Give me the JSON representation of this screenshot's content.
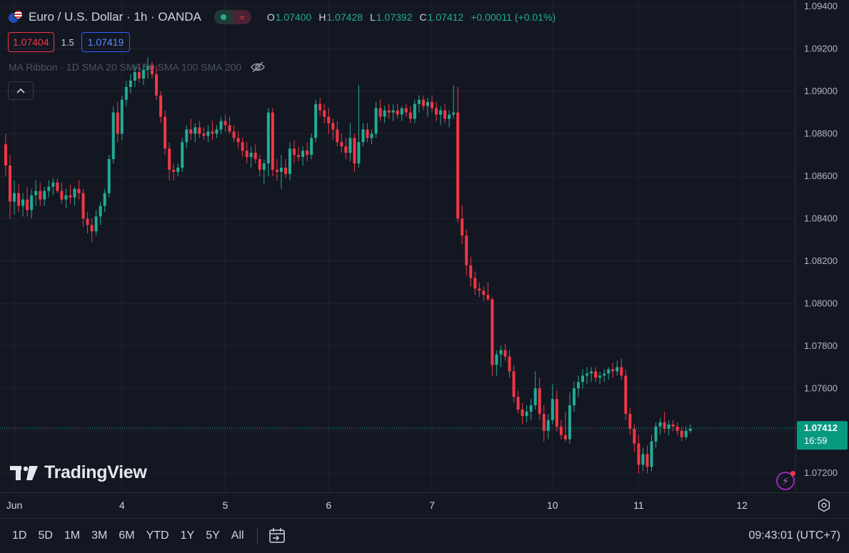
{
  "header": {
    "symbol_title": "Euro / U.S. Dollar · 1h · OANDA",
    "market_status_icon": "market-open-dot",
    "replay_icon": "wave-icon",
    "ohlc": {
      "o_label": "O",
      "o_value": "1.07400",
      "h_label": "H",
      "h_value": "1.07428",
      "l_label": "L",
      "l_value": "1.07392",
      "c_label": "C",
      "c_value": "1.07412",
      "change": "+0.00011 (+0.01%)"
    }
  },
  "trade": {
    "bid": "1.07404",
    "spread": "1.5",
    "ask": "1.07419"
  },
  "indicator": {
    "label": "MA Ribbon · 1D SMA 20 SMA 50 SMA 100 SMA 200",
    "visibility_icon": "eye-off-icon"
  },
  "brand": {
    "name": "TradingView",
    "logo_icon": "tv-logo-icon"
  },
  "price_tag": {
    "price": "1.07412",
    "countdown": "16:59"
  },
  "ranges": [
    "1D",
    "5D",
    "1M",
    "3M",
    "6M",
    "YTD",
    "1Y",
    "5Y",
    "All"
  ],
  "clock": "09:43:01 (UTC+7)",
  "colors": {
    "up": "#22ab94",
    "down": "#f23645",
    "background": "#131722",
    "grid": "#1f2430",
    "text": "#d1d4dc"
  },
  "chart_data": {
    "type": "candlestick",
    "title": "Euro / U.S. Dollar · 1h · OANDA",
    "xlabel": "",
    "ylabel": "",
    "ylim": [
      1.0711,
      1.0943
    ],
    "y_ticks": [
      "1.07200",
      "1.07400",
      "1.07600",
      "1.07800",
      "1.08000",
      "1.08200",
      "1.08400",
      "1.08600",
      "1.08800",
      "1.09000",
      "1.09200",
      "1.09400"
    ],
    "x_ticks": [
      {
        "label": "Jun",
        "bar": 2
      },
      {
        "label": "4",
        "bar": 27
      },
      {
        "label": "5",
        "bar": 51
      },
      {
        "label": "6",
        "bar": 75
      },
      {
        "label": "7",
        "bar": 99
      },
      {
        "label": "10",
        "bar": 127
      },
      {
        "label": "11",
        "bar": 147
      },
      {
        "label": "12",
        "bar": 171
      }
    ],
    "grid": true,
    "last_price": 1.07412,
    "ohlc": [
      [
        1.0875,
        1.088,
        1.086,
        1.0865
      ],
      [
        1.0865,
        1.087,
        1.084,
        1.0848
      ],
      [
        1.0848,
        1.0858,
        1.0842,
        1.0852
      ],
      [
        1.0852,
        1.0856,
        1.0843,
        1.0846
      ],
      [
        1.0846,
        1.0852,
        1.0841,
        1.0849
      ],
      [
        1.0849,
        1.0855,
        1.0841,
        1.0844
      ],
      [
        1.0844,
        1.0854,
        1.084,
        1.0851
      ],
      [
        1.0851,
        1.0858,
        1.0846,
        1.0853
      ],
      [
        1.0853,
        1.0857,
        1.0846,
        1.0849
      ],
      [
        1.0849,
        1.0855,
        1.0846,
        1.0853
      ],
      [
        1.0853,
        1.0858,
        1.085,
        1.0855
      ],
      [
        1.0855,
        1.0859,
        1.0851,
        1.0857
      ],
      [
        1.0857,
        1.0859,
        1.0852,
        1.0853
      ],
      [
        1.0853,
        1.0857,
        1.0847,
        1.0849
      ],
      [
        1.0849,
        1.0854,
        1.0845,
        1.0851
      ],
      [
        1.0851,
        1.0856,
        1.0847,
        1.085
      ],
      [
        1.085,
        1.0855,
        1.0846,
        1.0854
      ],
      [
        1.0854,
        1.0858,
        1.0849,
        1.0852
      ],
      [
        1.0852,
        1.0854,
        1.0836,
        1.084
      ],
      [
        1.084,
        1.0843,
        1.0833,
        1.0837
      ],
      [
        1.0837,
        1.084,
        1.0829,
        1.0834
      ],
      [
        1.0834,
        1.0844,
        1.0832,
        1.0841
      ],
      [
        1.0841,
        1.0848,
        1.0837,
        1.0846
      ],
      [
        1.0846,
        1.0854,
        1.0843,
        1.0852
      ],
      [
        1.0852,
        1.087,
        1.085,
        1.0868
      ],
      [
        1.0868,
        1.0893,
        1.0866,
        1.089
      ],
      [
        1.089,
        1.0895,
        1.0876,
        1.088
      ],
      [
        1.088,
        1.0898,
        1.0877,
        1.0896
      ],
      [
        1.0896,
        1.0905,
        1.0893,
        1.0902
      ],
      [
        1.0902,
        1.0908,
        1.0899,
        1.0905
      ],
      [
        1.0905,
        1.0912,
        1.0902,
        1.0909
      ],
      [
        1.0909,
        1.0913,
        1.0904,
        1.0906
      ],
      [
        1.0906,
        1.0913,
        1.0903,
        1.091
      ],
      [
        1.091,
        1.0916,
        1.0906,
        1.0912
      ],
      [
        1.0912,
        1.0914,
        1.0906,
        1.0908
      ],
      [
        1.0908,
        1.0912,
        1.0896,
        1.0898
      ],
      [
        1.0898,
        1.09,
        1.0885,
        1.0888
      ],
      [
        1.0888,
        1.0891,
        1.087,
        1.0873
      ],
      [
        1.0873,
        1.0876,
        1.0858,
        1.0863
      ],
      [
        1.0863,
        1.0866,
        1.0858,
        1.0862
      ],
      [
        1.0862,
        1.0866,
        1.086,
        1.0864
      ],
      [
        1.0864,
        1.0878,
        1.0862,
        1.0876
      ],
      [
        1.0876,
        1.0884,
        1.0873,
        1.0882
      ],
      [
        1.0882,
        1.0887,
        1.0877,
        1.088
      ],
      [
        1.088,
        1.0885,
        1.0876,
        1.0883
      ],
      [
        1.0883,
        1.0886,
        1.0878,
        1.088
      ],
      [
        1.088,
        1.0883,
        1.0877,
        1.0879
      ],
      [
        1.0879,
        1.0884,
        1.0876,
        1.0881
      ],
      [
        1.0881,
        1.0886,
        1.0877,
        1.088
      ],
      [
        1.088,
        1.0884,
        1.0878,
        1.0882
      ],
      [
        1.0882,
        1.0888,
        1.088,
        1.0886
      ],
      [
        1.0886,
        1.0889,
        1.0881,
        1.0884
      ],
      [
        1.0884,
        1.0888,
        1.088,
        1.0881
      ],
      [
        1.0881,
        1.0884,
        1.0876,
        1.0878
      ],
      [
        1.0878,
        1.0881,
        1.0873,
        1.0876
      ],
      [
        1.0876,
        1.0878,
        1.0869,
        1.0872
      ],
      [
        1.0872,
        1.0876,
        1.0866,
        1.0869
      ],
      [
        1.0869,
        1.0874,
        1.0864,
        1.0871
      ],
      [
        1.0871,
        1.0875,
        1.0866,
        1.0868
      ],
      [
        1.0868,
        1.087,
        1.086,
        1.0863
      ],
      [
        1.0863,
        1.0868,
        1.0856,
        1.0866
      ],
      [
        1.0866,
        1.0892,
        1.086,
        1.089
      ],
      [
        1.089,
        1.0892,
        1.086,
        1.0863
      ],
      [
        1.0863,
        1.0868,
        1.0858,
        1.0862
      ],
      [
        1.0862,
        1.087,
        1.0854,
        1.0864
      ],
      [
        1.0864,
        1.0868,
        1.0859,
        1.0861
      ],
      [
        1.0861,
        1.0876,
        1.0858,
        1.0873
      ],
      [
        1.0873,
        1.0877,
        1.0866,
        1.087
      ],
      [
        1.087,
        1.0874,
        1.0867,
        1.0869
      ],
      [
        1.0869,
        1.0874,
        1.0865,
        1.0872
      ],
      [
        1.0872,
        1.0876,
        1.0867,
        1.087
      ],
      [
        1.087,
        1.088,
        1.0868,
        1.0878
      ],
      [
        1.0878,
        1.0896,
        1.0876,
        1.0894
      ],
      [
        1.0894,
        1.0897,
        1.0888,
        1.0891
      ],
      [
        1.0891,
        1.0894,
        1.0885,
        1.0888
      ],
      [
        1.0888,
        1.0892,
        1.088,
        1.0885
      ],
      [
        1.0885,
        1.0887,
        1.0877,
        1.0882
      ],
      [
        1.0882,
        1.0886,
        1.0874,
        1.0876
      ],
      [
        1.0876,
        1.088,
        1.0871,
        1.0874
      ],
      [
        1.0874,
        1.0878,
        1.0868,
        1.0871
      ],
      [
        1.0871,
        1.0885,
        1.0867,
        1.0878
      ],
      [
        1.0878,
        1.088,
        1.0862,
        1.0866
      ],
      [
        1.0866,
        1.0903,
        1.0864,
        1.0876
      ],
      [
        1.0876,
        1.0885,
        1.0874,
        1.0882
      ],
      [
        1.0882,
        1.0885,
        1.0876,
        1.0878
      ],
      [
        1.0878,
        1.0882,
        1.0875,
        1.088
      ],
      [
        1.088,
        1.0895,
        1.0878,
        1.0892
      ],
      [
        1.0892,
        1.0896,
        1.0886,
        1.0888
      ],
      [
        1.0888,
        1.0893,
        1.0885,
        1.0891
      ],
      [
        1.0891,
        1.0894,
        1.0887,
        1.089
      ],
      [
        1.089,
        1.0894,
        1.0886,
        1.0891
      ],
      [
        1.0891,
        1.0894,
        1.0887,
        1.0889
      ],
      [
        1.0889,
        1.0893,
        1.0886,
        1.0892
      ],
      [
        1.0892,
        1.0894,
        1.0888,
        1.089
      ],
      [
        1.089,
        1.0893,
        1.0885,
        1.0887
      ],
      [
        1.0887,
        1.0896,
        1.0885,
        1.0894
      ],
      [
        1.0894,
        1.0898,
        1.089,
        1.0896
      ],
      [
        1.0896,
        1.0898,
        1.0891,
        1.0893
      ],
      [
        1.0893,
        1.0897,
        1.0888,
        1.0895
      ],
      [
        1.0895,
        1.0898,
        1.089,
        1.0892
      ],
      [
        1.0892,
        1.0895,
        1.0886,
        1.0889
      ],
      [
        1.0889,
        1.0893,
        1.0884,
        1.0891
      ],
      [
        1.0891,
        1.0894,
        1.0885,
        1.0887
      ],
      [
        1.0887,
        1.0891,
        1.0883,
        1.0889
      ],
      [
        1.0889,
        1.0903,
        1.0887,
        1.089
      ],
      [
        1.089,
        1.0902,
        1.0838,
        1.084
      ],
      [
        1.084,
        1.0846,
        1.0828,
        1.0832
      ],
      [
        1.0832,
        1.0835,
        1.0813,
        1.0818
      ],
      [
        1.0818,
        1.0822,
        1.0808,
        1.0812
      ],
      [
        1.0812,
        1.0815,
        1.0804,
        1.0807
      ],
      [
        1.0807,
        1.081,
        1.0803,
        1.0806
      ],
      [
        1.0806,
        1.0808,
        1.0801,
        1.0804
      ],
      [
        1.0804,
        1.081,
        1.0801,
        1.0802
      ],
      [
        1.0802,
        1.0803,
        1.0766,
        1.0771
      ],
      [
        1.0771,
        1.0778,
        1.0766,
        1.0776
      ],
      [
        1.0776,
        1.078,
        1.077,
        1.0778
      ],
      [
        1.0778,
        1.0781,
        1.0773,
        1.0775
      ],
      [
        1.0775,
        1.0778,
        1.0765,
        1.0768
      ],
      [
        1.0768,
        1.0771,
        1.0753,
        1.0756
      ],
      [
        1.0756,
        1.0759,
        1.0748,
        1.075
      ],
      [
        1.075,
        1.0753,
        1.0743,
        1.0747
      ],
      [
        1.0747,
        1.0752,
        1.0744,
        1.0749
      ],
      [
        1.0749,
        1.0755,
        1.0745,
        1.0752
      ],
      [
        1.0752,
        1.0768,
        1.075,
        1.076
      ],
      [
        1.076,
        1.0765,
        1.0745,
        1.0748
      ],
      [
        1.0748,
        1.0752,
        1.0735,
        1.074
      ],
      [
        1.074,
        1.0748,
        1.0736,
        1.0745
      ],
      [
        1.0745,
        1.0762,
        1.0743,
        1.0755
      ],
      [
        1.0755,
        1.0759,
        1.074,
        1.0742
      ],
      [
        1.0742,
        1.0745,
        1.0736,
        1.0738
      ],
      [
        1.0738,
        1.0749,
        1.0735,
        1.0736
      ],
      [
        1.0736,
        1.0758,
        1.0734,
        1.0752
      ],
      [
        1.0752,
        1.0763,
        1.0749,
        1.076
      ],
      [
        1.076,
        1.0766,
        1.0756,
        1.0763
      ],
      [
        1.0763,
        1.0769,
        1.076,
        1.0766
      ],
      [
        1.0766,
        1.077,
        1.0762,
        1.0767
      ],
      [
        1.0767,
        1.077,
        1.0763,
        1.0768
      ],
      [
        1.0768,
        1.077,
        1.0763,
        1.0765
      ],
      [
        1.0765,
        1.0768,
        1.0762,
        1.0766
      ],
      [
        1.0766,
        1.0769,
        1.0763,
        1.0767
      ],
      [
        1.0767,
        1.077,
        1.0764,
        1.0769
      ],
      [
        1.0769,
        1.0772,
        1.0765,
        1.0768
      ],
      [
        1.0768,
        1.0773,
        1.0766,
        1.077
      ],
      [
        1.077,
        1.0774,
        1.0764,
        1.0766
      ],
      [
        1.0766,
        1.0769,
        1.0745,
        1.0748
      ],
      [
        1.0748,
        1.0751,
        1.0738,
        1.0741
      ],
      [
        1.0741,
        1.0743,
        1.073,
        1.0734
      ],
      [
        1.0734,
        1.0738,
        1.072,
        1.0724
      ],
      [
        1.0724,
        1.0732,
        1.0721,
        1.0729
      ],
      [
        1.0729,
        1.0733,
        1.072,
        1.0723
      ],
      [
        1.0723,
        1.0738,
        1.0721,
        1.0735
      ],
      [
        1.0735,
        1.0744,
        1.0732,
        1.0742
      ],
      [
        1.0742,
        1.0746,
        1.0738,
        1.0744
      ],
      [
        1.0744,
        1.0749,
        1.0739,
        1.0741
      ],
      [
        1.0741,
        1.0745,
        1.0738,
        1.0743
      ],
      [
        1.0743,
        1.0745,
        1.074,
        1.0742
      ],
      [
        1.0742,
        1.0744,
        1.0738,
        1.074
      ],
      [
        1.074,
        1.0742,
        1.0735,
        1.0737
      ],
      [
        1.0737,
        1.0742,
        1.0736,
        1.074
      ],
      [
        1.074,
        1.0743,
        1.0739,
        1.0741
      ]
    ]
  }
}
